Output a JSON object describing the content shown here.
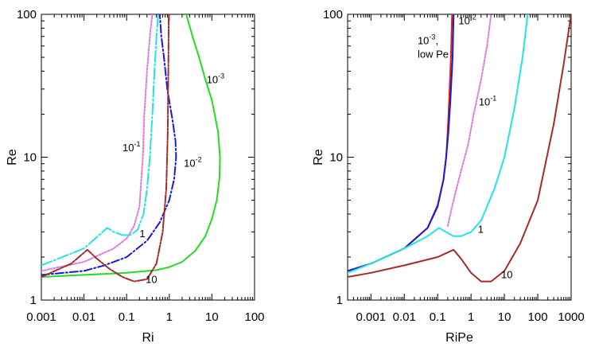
{
  "chart_data": [
    {
      "type": "line",
      "xlabel": "Ri",
      "ylabel": "Re",
      "xscale": "log",
      "yscale": "log",
      "xlim": [
        0.001,
        100
      ],
      "ylim": [
        1,
        100
      ],
      "x_ticks": [
        "0.001",
        "0.01",
        "0.1",
        "1",
        "10",
        "100"
      ],
      "y_ticks": [
        "1",
        "10",
        "100"
      ],
      "series": [
        {
          "name": "1e-3",
          "color": "#22dd22",
          "dash": "",
          "points": [
            [
              0.001,
              1.45
            ],
            [
              0.01,
              1.5
            ],
            [
              0.1,
              1.55
            ],
            [
              0.5,
              1.62
            ],
            [
              1,
              1.7
            ],
            [
              2,
              1.85
            ],
            [
              4,
              2.2
            ],
            [
              7,
              2.8
            ],
            [
              10,
              3.7
            ],
            [
              13,
              5
            ],
            [
              15,
              7
            ],
            [
              15.5,
              10
            ],
            [
              14,
              15
            ],
            [
              10,
              25
            ],
            [
              7,
              35
            ],
            [
              5,
              50
            ],
            [
              3.5,
              70
            ],
            [
              2.5,
              100
            ]
          ]
        },
        {
          "name": "1e-2",
          "color": "#1a1ad4",
          "dash": "10 3 2 3",
          "points": [
            [
              0.001,
              1.5
            ],
            [
              0.01,
              1.6
            ],
            [
              0.03,
              1.75
            ],
            [
              0.1,
              2.0
            ],
            [
              0.3,
              2.6
            ],
            [
              0.6,
              3.5
            ],
            [
              1.0,
              5.0
            ],
            [
              1.3,
              7.0
            ],
            [
              1.45,
              10
            ],
            [
              1.4,
              13
            ],
            [
              1.2,
              18
            ],
            [
              0.9,
              30
            ],
            [
              0.75,
              50
            ],
            [
              0.65,
              70
            ],
            [
              0.6,
              100
            ]
          ]
        },
        {
          "name": "1e-1",
          "color": "#e07ae0",
          "dash": "2 2",
          "points": [
            [
              0.001,
              1.6
            ],
            [
              0.01,
              1.85
            ],
            [
              0.05,
              2.3
            ],
            [
              0.1,
              2.7
            ],
            [
              0.15,
              3.3
            ],
            [
              0.2,
              4.5
            ],
            [
              0.22,
              7
            ],
            [
              0.24,
              10
            ],
            [
              0.26,
              20
            ],
            [
              0.3,
              40
            ],
            [
              0.35,
              70
            ],
            [
              0.4,
              100
            ]
          ]
        },
        {
          "name": "1",
          "color": "#22e4e4",
          "dash": "14 3 2 3",
          "points": [
            [
              0.001,
              1.75
            ],
            [
              0.01,
              2.3
            ],
            [
              0.035,
              3.2
            ],
            [
              0.05,
              3.0
            ],
            [
              0.08,
              2.85
            ],
            [
              0.12,
              2.85
            ],
            [
              0.18,
              3.1
            ],
            [
              0.25,
              4.0
            ],
            [
              0.3,
              6.0
            ],
            [
              0.35,
              10
            ],
            [
              0.4,
              20
            ],
            [
              0.45,
              40
            ],
            [
              0.5,
              70
            ],
            [
              0.55,
              100
            ]
          ]
        },
        {
          "name": "10",
          "color": "#a52a2a",
          "dash": "10 2 2 2",
          "points": [
            [
              0.001,
              1.45
            ],
            [
              0.005,
              1.8
            ],
            [
              0.012,
              2.25
            ],
            [
              0.02,
              1.95
            ],
            [
              0.04,
              1.65
            ],
            [
              0.08,
              1.45
            ],
            [
              0.15,
              1.35
            ],
            [
              0.3,
              1.4
            ],
            [
              0.5,
              1.8
            ],
            [
              0.7,
              3.0
            ],
            [
              0.85,
              6.0
            ],
            [
              0.92,
              15
            ],
            [
              0.95,
              40
            ],
            [
              0.97,
              100
            ]
          ]
        }
      ],
      "annotations": [
        {
          "base": "10",
          "exp": "-3",
          "x": 7.5,
          "y": 33
        },
        {
          "base": "10",
          "exp": "-2",
          "x": 2.2,
          "y": 8.6
        },
        {
          "base": "10",
          "exp": "-1",
          "x": 0.08,
          "y": 11
        },
        {
          "base": "1",
          "exp": "",
          "x": 0.2,
          "y": 2.75
        },
        {
          "base": "10",
          "exp": "",
          "x": 0.28,
          "y": 1.32
        }
      ]
    },
    {
      "type": "line",
      "xlabel": "RiPe",
      "ylabel": "Re",
      "xscale": "log",
      "yscale": "log",
      "xlim": [
        0.0002,
        1000
      ],
      "ylim": [
        1,
        100
      ],
      "x_ticks": [
        "0.001",
        "0.01",
        "0.1",
        "1",
        "10",
        "100",
        "1000"
      ],
      "y_ticks": [
        "1",
        "10",
        "100"
      ],
      "series": [
        {
          "name": "1e-3, low Pe",
          "color": "#dd2222",
          "dash": "",
          "points": [
            [
              0.0002,
              1.6
            ],
            [
              0.001,
              1.8
            ],
            [
              0.01,
              2.3
            ],
            [
              0.05,
              3.2
            ],
            [
              0.1,
              4.5
            ],
            [
              0.15,
              7
            ],
            [
              0.18,
              10
            ],
            [
              0.2,
              15
            ],
            [
              0.22,
              25
            ],
            [
              0.25,
              50
            ],
            [
              0.27,
              100
            ]
          ]
        },
        {
          "name": "1e-2",
          "color": "#1a1ad4",
          "dash": "",
          "points": [
            [
              0.0002,
              1.6
            ],
            [
              0.001,
              1.8
            ],
            [
              0.01,
              2.3
            ],
            [
              0.05,
              3.2
            ],
            [
              0.1,
              4.6
            ],
            [
              0.15,
              7
            ],
            [
              0.18,
              10
            ],
            [
              0.21,
              15
            ],
            [
              0.24,
              25
            ],
            [
              0.28,
              50
            ],
            [
              0.3,
              100
            ]
          ]
        },
        {
          "name": "1e-1",
          "color": "#e07ae0",
          "dash": "2 2",
          "points": [
            [
              0.2,
              3.3
            ],
            [
              0.3,
              5
            ],
            [
              0.5,
              8
            ],
            [
              0.8,
              12
            ],
            [
              1.2,
              20
            ],
            [
              2,
              35
            ],
            [
              3,
              60
            ],
            [
              4,
              100
            ]
          ]
        },
        {
          "name": "1",
          "color": "#22e4e4",
          "dash": "",
          "points": [
            [
              0.0002,
              1.55
            ],
            [
              0.001,
              1.8
            ],
            [
              0.01,
              2.3
            ],
            [
              0.05,
              2.8
            ],
            [
              0.11,
              3.2
            ],
            [
              0.2,
              2.95
            ],
            [
              0.3,
              2.8
            ],
            [
              0.5,
              2.8
            ],
            [
              1,
              3.0
            ],
            [
              2,
              3.6
            ],
            [
              5,
              6
            ],
            [
              10,
              10
            ],
            [
              20,
              22
            ],
            [
              35,
              50
            ],
            [
              50,
              100
            ]
          ]
        },
        {
          "name": "10",
          "color": "#a52a2a",
          "dash": "",
          "points": [
            [
              0.0002,
              1.45
            ],
            [
              0.001,
              1.55
            ],
            [
              0.01,
              1.75
            ],
            [
              0.1,
              2.0
            ],
            [
              0.3,
              2.25
            ],
            [
              0.5,
              1.95
            ],
            [
              1,
              1.55
            ],
            [
              2,
              1.35
            ],
            [
              4,
              1.35
            ],
            [
              10,
              1.6
            ],
            [
              30,
              2.5
            ],
            [
              100,
              5
            ],
            [
              300,
              17
            ],
            [
              600,
              45
            ],
            [
              1000,
              100
            ]
          ]
        }
      ],
      "annotations": [
        {
          "base": "10",
          "exp": "-3",
          "suffix": ",",
          "line2": "low Pe",
          "x": 0.025,
          "y": 62
        },
        {
          "base": "10",
          "exp": "-2",
          "x": 0.42,
          "y": 85
        },
        {
          "base": "10",
          "exp": "-1",
          "x": 1.7,
          "y": 23
        },
        {
          "base": "1",
          "exp": "",
          "x": 1.6,
          "y": 2.95
        },
        {
          "base": "10",
          "exp": "",
          "x": 8,
          "y": 1.42
        }
      ]
    }
  ]
}
